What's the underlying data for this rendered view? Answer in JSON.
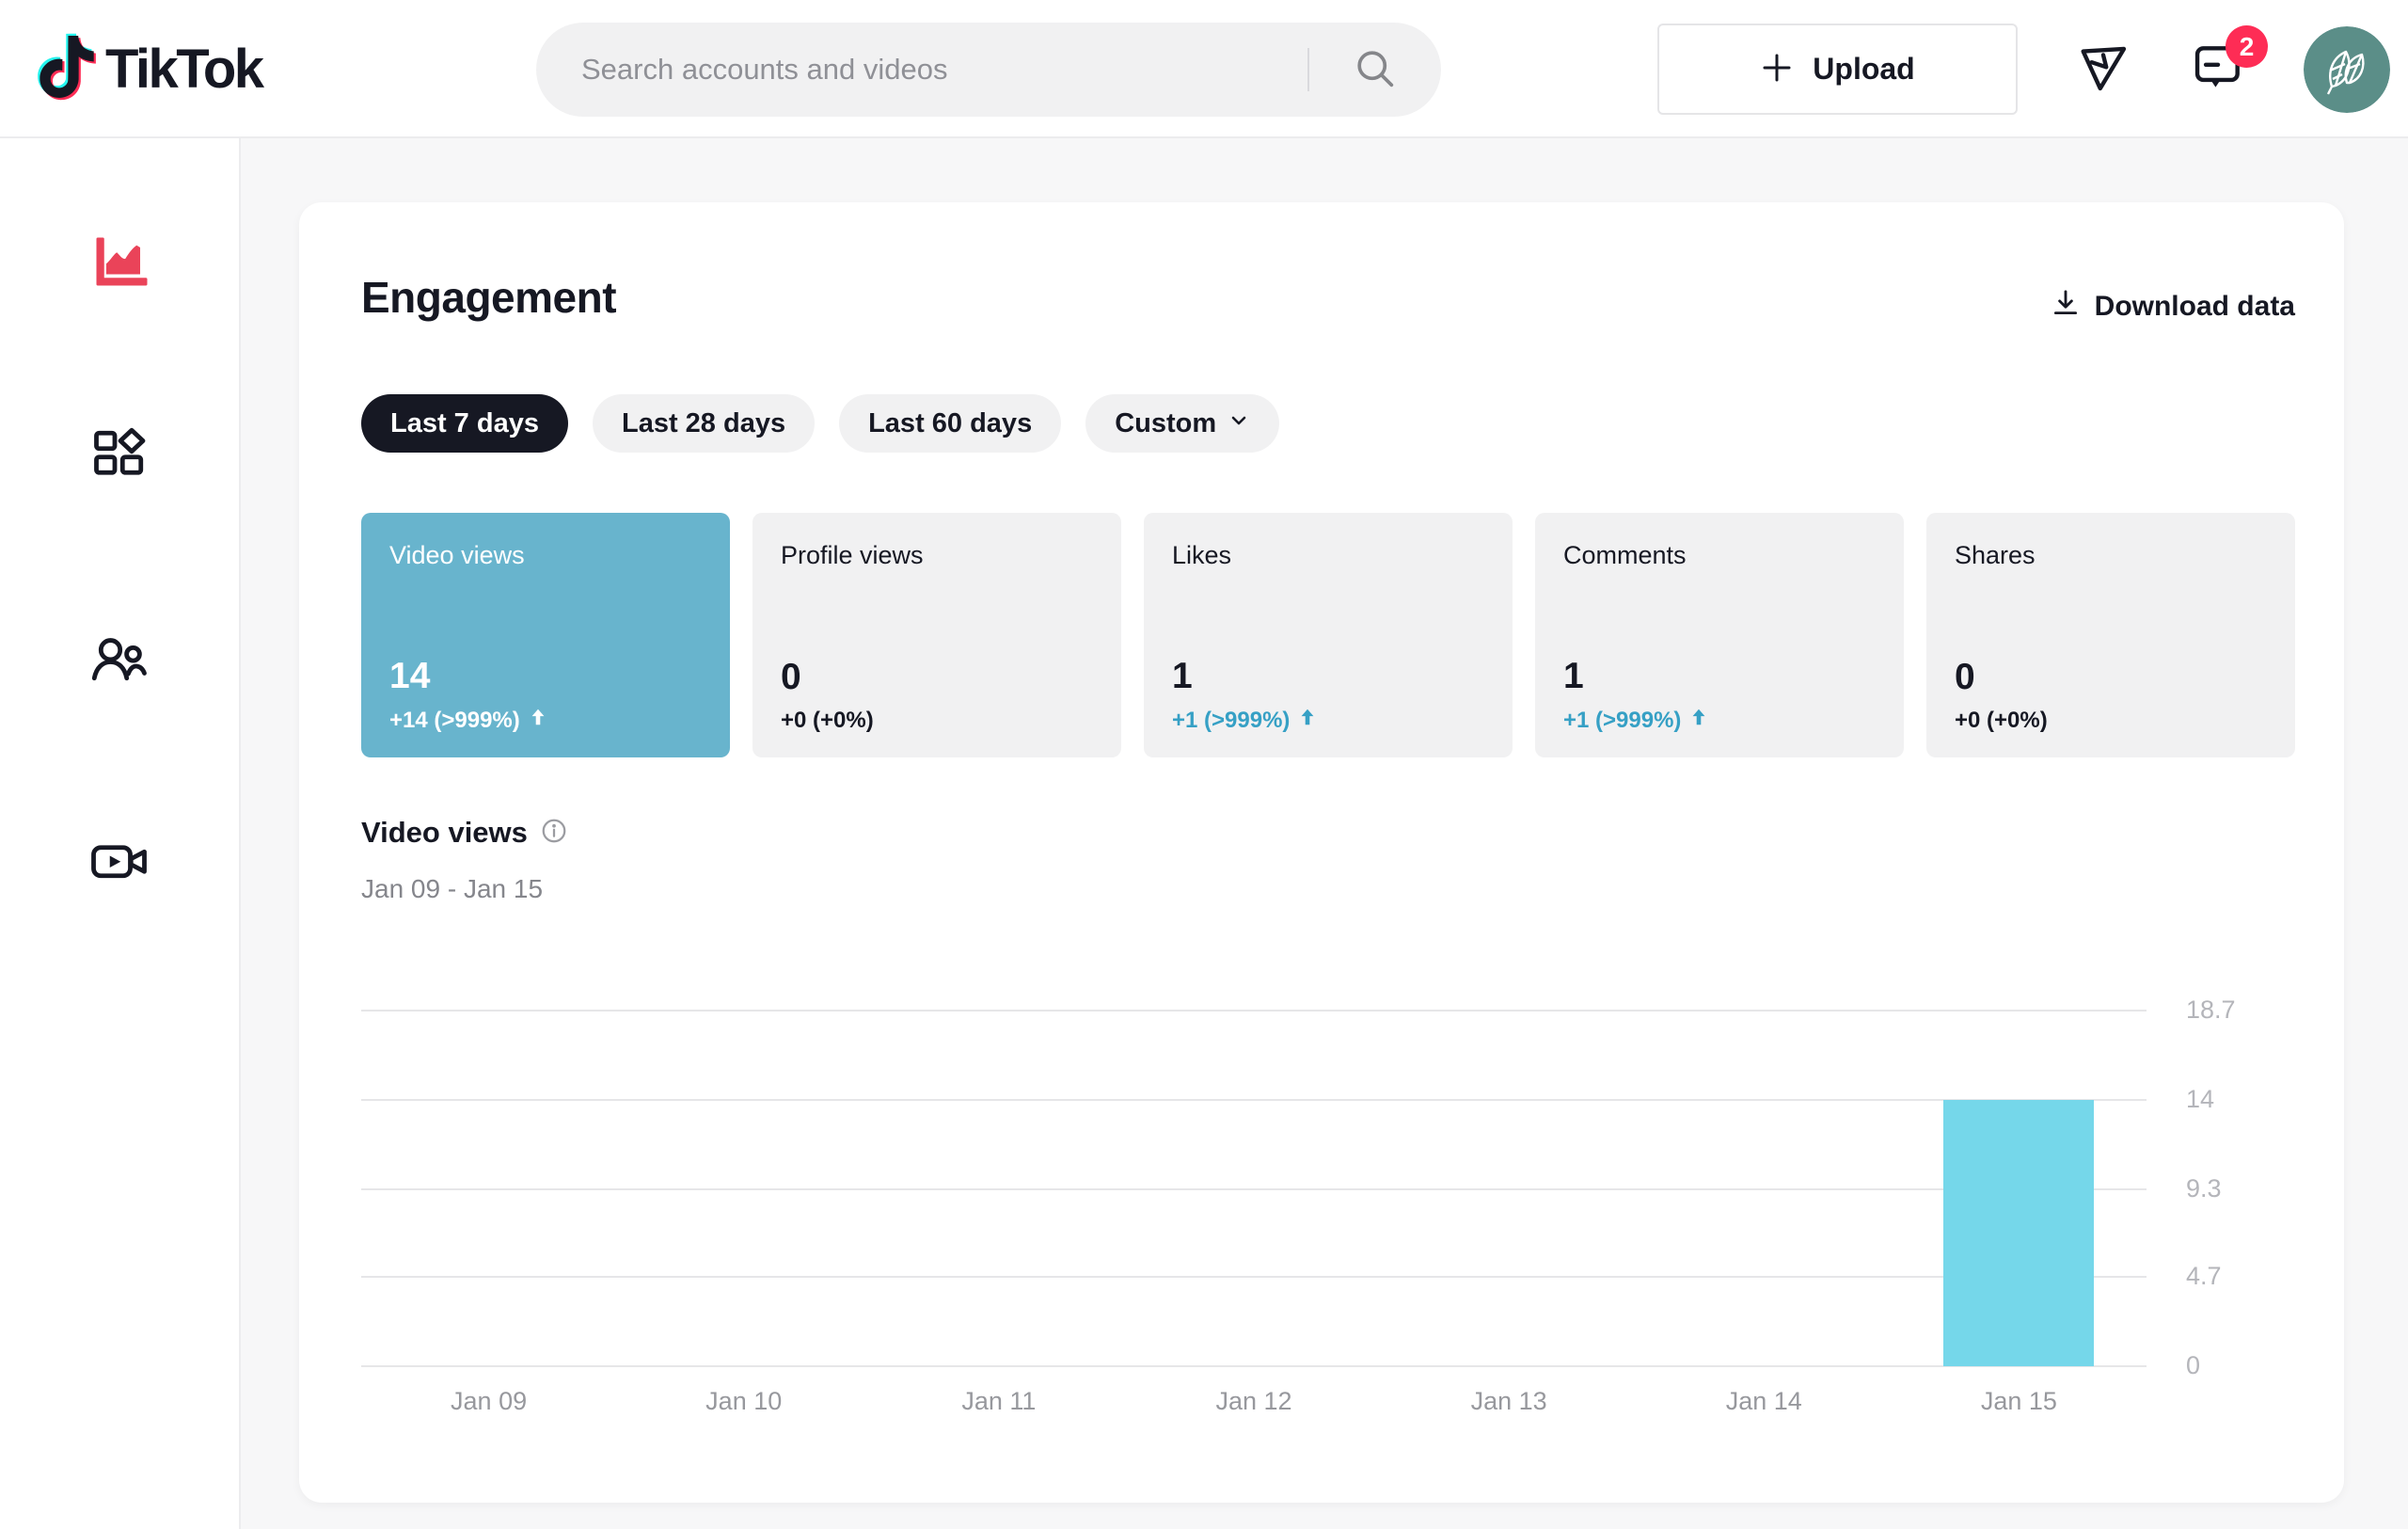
{
  "header": {
    "logo_text": "TikTok",
    "search": {
      "placeholder": "Search accounts and videos",
      "value": ""
    },
    "upload_label": "Upload",
    "inbox_badge": "2",
    "icons": [
      "tiktok-note-icon",
      "search-icon",
      "plus-icon",
      "share-icon",
      "inbox-icon",
      "avatar"
    ]
  },
  "sidebar": {
    "items": [
      {
        "icon": "analytics-chart-icon",
        "active": true
      },
      {
        "icon": "content-grid-icon",
        "active": false
      },
      {
        "icon": "followers-icon",
        "active": false
      },
      {
        "icon": "live-camera-icon",
        "active": false
      }
    ]
  },
  "engagement": {
    "title": "Engagement",
    "download_label": "Download data",
    "filters": [
      "Last 7 days",
      "Last 28 days",
      "Last 60 days",
      "Custom"
    ],
    "active_filter": "Last 7 days",
    "metrics": [
      {
        "label": "Video views",
        "value": "14",
        "change": "+14 (>999%)",
        "trend": "up",
        "selected": true
      },
      {
        "label": "Profile views",
        "value": "0",
        "change": "+0 (+0%)",
        "trend": "flat",
        "selected": false
      },
      {
        "label": "Likes",
        "value": "1",
        "change": "+1 (>999%)",
        "trend": "up",
        "selected": false
      },
      {
        "label": "Comments",
        "value": "1",
        "change": "+1 (>999%)",
        "trend": "up",
        "selected": false
      },
      {
        "label": "Shares",
        "value": "0",
        "change": "+0 (+0%)",
        "trend": "flat",
        "selected": false
      }
    ],
    "chart_section": {
      "title": "Video views",
      "date_range": "Jan 09 - Jan 15"
    }
  },
  "chart_data": {
    "type": "bar",
    "title": "Video views",
    "categories": [
      "Jan 09",
      "Jan 10",
      "Jan 11",
      "Jan 12",
      "Jan 13",
      "Jan 14",
      "Jan 15"
    ],
    "values": [
      0,
      0,
      0,
      0,
      0,
      0,
      14
    ],
    "yticks": [
      0,
      4.7,
      9.3,
      14,
      18.7
    ],
    "ylim": [
      0,
      18.7
    ],
    "xlabel": "",
    "ylabel": "",
    "grid": "horizontal",
    "ytick_side": "right",
    "legend": "none",
    "bar_color": "#75d7ea"
  },
  "colors": {
    "brand_red": "#fe2c55",
    "brand_cyan": "#25f4ee",
    "active_sidebar_icon": "#ea4359",
    "selected_metric_bg": "#68b4cd",
    "bar": "#75d7ea",
    "change_up_text": "#36a0c5",
    "active_pill_bg": "#161823",
    "badge_bg": "#fe2c55",
    "avatar_bg": "#5b8e88"
  }
}
